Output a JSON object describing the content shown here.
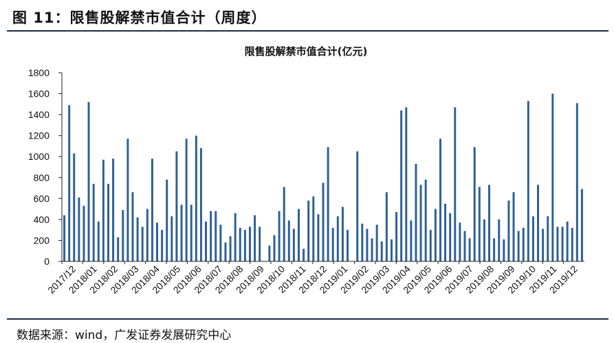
{
  "figure": {
    "title": "图 11：限售股解禁市值合计（周度）",
    "source": "数据来源：wind，广发证券发展研究中心"
  },
  "chart_data": {
    "type": "bar",
    "title": "限售股解禁市值合计(亿元)",
    "xlabel": "",
    "ylabel": "",
    "ylim": [
      0,
      1800
    ],
    "yticks": [
      0,
      200,
      400,
      600,
      800,
      1000,
      1200,
      1400,
      1600,
      1800
    ],
    "x_tick_labels": [
      "2017/12",
      "2018/01",
      "2018/02",
      "2018/03",
      "2018/04",
      "2018/05",
      "2018/06",
      "2018/07",
      "2018/08",
      "2018/09",
      "2018/10",
      "2018/11",
      "2018/12",
      "2019/01",
      "2019/02",
      "2019/03",
      "2019/04",
      "2019/05",
      "2019/06",
      "2019/07",
      "2019/08",
      "2019/09",
      "2019/10",
      "2019/11",
      "2019/12"
    ],
    "bar_color": "#2e5f97",
    "grid": false,
    "legend": "none",
    "values": [
      440,
      1490,
      1030,
      610,
      530,
      1520,
      740,
      380,
      970,
      740,
      980,
      230,
      490,
      1170,
      660,
      420,
      330,
      500,
      980,
      370,
      300,
      780,
      430,
      1050,
      540,
      1170,
      540,
      1200,
      1080,
      380,
      480,
      480,
      350,
      180,
      240,
      460,
      320,
      300,
      330,
      440,
      330,
      0,
      150,
      250,
      480,
      710,
      390,
      310,
      500,
      120,
      580,
      620,
      450,
      750,
      1090,
      320,
      430,
      520,
      300,
      0,
      1050,
      360,
      310,
      220,
      350,
      190,
      660,
      210,
      470,
      1440,
      1470,
      390,
      930,
      730,
      780,
      300,
      500,
      1170,
      550,
      460,
      1470,
      370,
      290,
      220,
      1090,
      710,
      400,
      730,
      220,
      400,
      210,
      580,
      660,
      290,
      320,
      1530,
      430,
      730,
      310,
      430,
      1600,
      330,
      330,
      380,
      320,
      1510,
      690
    ]
  }
}
